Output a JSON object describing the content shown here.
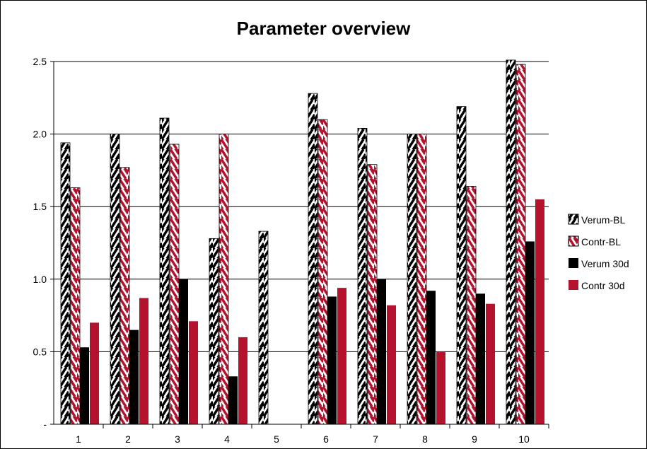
{
  "chart_data": {
    "type": "bar",
    "title": "Parameter overview",
    "xlabel": "",
    "ylabel": "",
    "categories": [
      "1",
      "2",
      "3",
      "4",
      "5",
      "6",
      "7",
      "8",
      "9",
      "10"
    ],
    "ylim": [
      0,
      2.5
    ],
    "y_ticks": [
      {
        "value": 0,
        "label": "-"
      },
      {
        "value": 0.5,
        "label": "0.5"
      },
      {
        "value": 1.0,
        "label": "1.0"
      },
      {
        "value": 1.5,
        "label": "1.5"
      },
      {
        "value": 2.0,
        "label": "2.0"
      },
      {
        "value": 2.5,
        "label": "2.5"
      }
    ],
    "grid": true,
    "legend_position": "right",
    "series": [
      {
        "name": "Verum-BL",
        "pattern": "hatch",
        "color": "#000000",
        "values": [
          1.94,
          2.0,
          2.11,
          1.28,
          1.33,
          2.28,
          2.04,
          2.0,
          2.19,
          2.51
        ]
      },
      {
        "name": "Contr-BL",
        "pattern": "hatch",
        "color": "#b5122e",
        "values": [
          1.63,
          1.77,
          1.93,
          2.0,
          null,
          2.1,
          1.79,
          2.0,
          1.64,
          2.48
        ]
      },
      {
        "name": "Verum 30d",
        "pattern": "solid",
        "color": "#000000",
        "values": [
          0.53,
          0.65,
          1.0,
          0.33,
          null,
          0.88,
          1.0,
          0.92,
          0.9,
          1.26
        ]
      },
      {
        "name": "Contr 30d",
        "pattern": "solid",
        "color": "#b5122e",
        "values": [
          0.7,
          0.87,
          0.71,
          0.6,
          null,
          0.94,
          0.82,
          0.5,
          0.83,
          1.55
        ]
      }
    ]
  }
}
